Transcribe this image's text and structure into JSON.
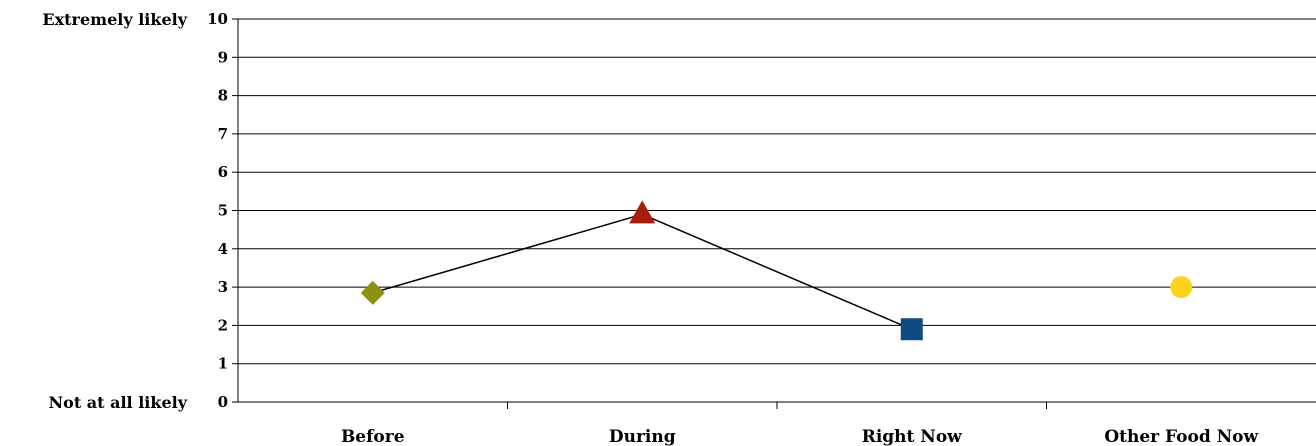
{
  "chart_data": {
    "type": "line",
    "title": "",
    "xlabel": "",
    "ylabel": "",
    "categories": [
      "Before",
      "During",
      "Right Now",
      "Other Food Now"
    ],
    "ylim": [
      0,
      10
    ],
    "yticks": [
      0,
      1,
      2,
      3,
      4,
      5,
      6,
      7,
      8,
      9,
      10
    ],
    "grid": true,
    "legend": "none",
    "y_anchor_labels": {
      "top": "Extremely likely",
      "bottom": "Not at all likely"
    },
    "points": [
      {
        "category": "Before",
        "value": 2.85,
        "marker": "diamond",
        "color": "#8F8F12"
      },
      {
        "category": "During",
        "value": 4.9,
        "marker": "triangle",
        "color": "#A81C0C"
      },
      {
        "category": "Right Now",
        "value": 1.9,
        "marker": "square",
        "color": "#0F4A80"
      },
      {
        "category": "Other Food Now",
        "value": 3.0,
        "marker": "circle",
        "color": "#FFD21E"
      }
    ],
    "connected_categories": [
      "Before",
      "During",
      "Right Now"
    ],
    "line_color": "#000000"
  }
}
